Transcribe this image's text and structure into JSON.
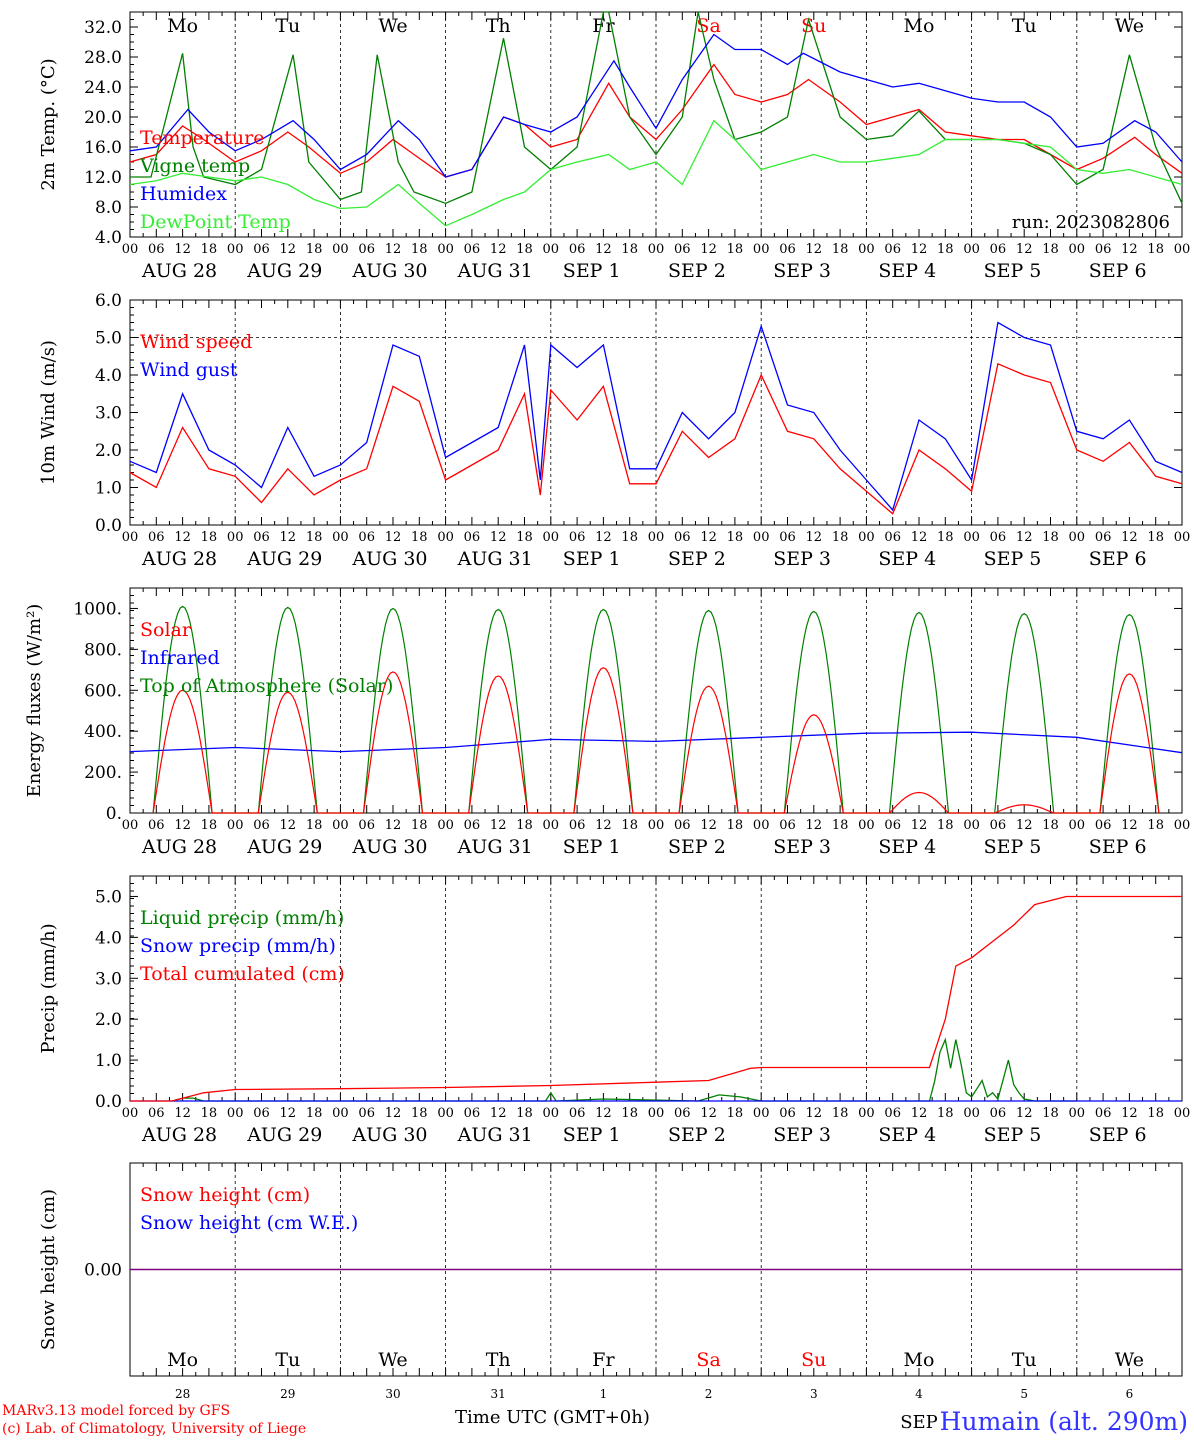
{
  "run_label": "run: 2023082806",
  "footer": {
    "credit_line1": "MARv3.13 model forced by GFS",
    "credit_line2": "(c) Lab. of Climatology, University of Liege",
    "station": "Humain (alt. 290m)",
    "time_axis_label": "Time UTC (GMT+0h)",
    "overlay_month": "SEP"
  },
  "hour_ticks": [
    "00",
    "06",
    "12",
    "18"
  ],
  "final_hour": "00",
  "day_letters": [
    "Mo",
    "Tu",
    "We",
    "Th",
    "Fr",
    "Sa",
    "Su",
    "Mo",
    "Tu",
    "We"
  ],
  "weekend_indices": [
    5,
    6
  ],
  "weekend_color": "#ff0000",
  "date_labels": [
    "AUG 28",
    "AUG 29",
    "AUG 30",
    "AUG 31",
    "SEP  1",
    "SEP  2",
    "SEP  3",
    "SEP  4",
    "SEP  5",
    "SEP  6"
  ],
  "bottom_day_numbers": [
    "28",
    "29",
    "30",
    "31",
    "1",
    "2",
    "3",
    "4",
    "5",
    "6"
  ],
  "chart_data": [
    {
      "type": "line",
      "ylabel": "2m Temp. (°C)",
      "ylim": [
        4,
        34
      ],
      "yticks": [
        "4.0",
        "8.0",
        "12.0",
        "16.0",
        "20.0",
        "24.0",
        "28.0",
        "32.0"
      ],
      "x_units": "days since AUG 28 00 UTC",
      "series": [
        {
          "name": "Temperature",
          "color": "#ff0000",
          "x": [
            0,
            0.25,
            0.5,
            0.7,
            1,
            1.25,
            1.5,
            1.7,
            2,
            2.25,
            2.5,
            2.7,
            3,
            3.25,
            3.55,
            3.75,
            4,
            4.25,
            4.55,
            4.75,
            5,
            5.25,
            5.55,
            5.75,
            6,
            6.25,
            6.45,
            6.75,
            7,
            7.25,
            7.5,
            7.75,
            8,
            8.25,
            8.5,
            8.75,
            9,
            9.25,
            9.55,
            9.75,
            10
          ],
          "y": [
            14,
            15,
            18.8,
            17,
            14,
            15.5,
            18,
            16,
            12.5,
            14,
            17,
            15,
            12,
            13,
            20,
            19,
            16,
            17,
            24.5,
            20,
            17,
            21,
            27,
            23,
            22,
            23,
            25,
            22,
            19,
            20,
            21,
            18,
            17.5,
            17,
            17,
            15,
            13,
            14.5,
            17.3,
            15,
            12.5
          ]
        },
        {
          "name": "Vigne temp",
          "color": "#008000",
          "x": [
            0,
            0.2,
            0.5,
            0.6,
            0.7,
            1,
            1.25,
            1.55,
            1.7,
            2,
            2.2,
            2.35,
            2.55,
            2.7,
            3,
            3.25,
            3.55,
            3.75,
            4,
            4.25,
            4.5,
            4.55,
            4.75,
            5,
            5.25,
            5.4,
            5.55,
            5.75,
            6,
            6.25,
            6.45,
            6.75,
            7,
            7.25,
            7.5,
            7.75,
            8,
            8.25,
            8.5,
            8.75,
            9,
            9.25,
            9.5,
            9.75,
            10
          ],
          "y": [
            12,
            12,
            28.5,
            16,
            12,
            11,
            13,
            28.3,
            14,
            9,
            10,
            28.3,
            14,
            10,
            8.5,
            10,
            30.5,
            16,
            13,
            16,
            34,
            34,
            20,
            15,
            20,
            34,
            25,
            17,
            18,
            20,
            33,
            20,
            17,
            17.5,
            20.8,
            17,
            17,
            17,
            16.5,
            15,
            11,
            13,
            28.3,
            16,
            8.5
          ]
        },
        {
          "name": "Humidex",
          "color": "#0000ff",
          "x": [
            0,
            0.25,
            0.55,
            0.75,
            1,
            1.25,
            1.55,
            1.75,
            2,
            2.25,
            2.55,
            2.75,
            3,
            3.25,
            3.55,
            3.75,
            4,
            4.25,
            4.6,
            4.75,
            5,
            5.25,
            5.55,
            5.75,
            6,
            6.25,
            6.4,
            6.75,
            7,
            7.25,
            7.5,
            7.75,
            8,
            8.25,
            8.5,
            8.75,
            9,
            9.25,
            9.55,
            9.75,
            10
          ],
          "y": [
            15.5,
            16,
            21,
            18,
            15.5,
            17,
            19.5,
            17,
            13,
            15,
            19.5,
            17,
            12,
            13,
            20,
            19,
            18,
            20,
            27.5,
            24,
            18.5,
            25,
            31,
            29,
            29,
            27,
            28.5,
            26,
            25,
            24,
            24.5,
            23.5,
            22.5,
            22,
            22,
            20,
            16,
            16.5,
            19.5,
            18,
            14
          ]
        },
        {
          "name": "DewPoint Temp",
          "color": "#33ee33",
          "x": [
            0,
            0.25,
            0.5,
            0.75,
            1,
            1.25,
            1.5,
            1.75,
            2,
            2.25,
            2.55,
            2.75,
            3,
            3.25,
            3.55,
            3.75,
            4,
            4.25,
            4.55,
            4.75,
            5,
            5.25,
            5.55,
            5.75,
            6,
            6.25,
            6.5,
            6.75,
            7,
            7.25,
            7.5,
            7.75,
            8,
            8.25,
            8.5,
            8.75,
            9,
            9.25,
            9.5,
            9.75,
            10
          ],
          "y": [
            11,
            11.5,
            12.5,
            12,
            11.5,
            12,
            11,
            9,
            7.8,
            8,
            11,
            8.5,
            5.5,
            7,
            9,
            10,
            13,
            14,
            15,
            13,
            14,
            11,
            19.5,
            17,
            13,
            14,
            15,
            14,
            14,
            14.5,
            15,
            17,
            17,
            17,
            16.5,
            16,
            13,
            12.5,
            13,
            12,
            11
          ]
        }
      ]
    },
    {
      "type": "line",
      "ylabel": "10m Wind (m/s)",
      "ylim": [
        0,
        6
      ],
      "yticks": [
        "0.0",
        "1.0",
        "2.0",
        "3.0",
        "4.0",
        "5.0",
        "6.0"
      ],
      "reference_line": 5,
      "x_units": "days since AUG 28 00 UTC",
      "series": [
        {
          "name": "Wind speed",
          "color": "#ff0000",
          "x": [
            0,
            0.25,
            0.5,
            0.75,
            1,
            1.25,
            1.5,
            1.75,
            2,
            2.25,
            2.5,
            2.75,
            3,
            3.25,
            3.5,
            3.75,
            3.9,
            4,
            4.25,
            4.5,
            4.75,
            5,
            5.25,
            5.5,
            5.75,
            6,
            6.25,
            6.5,
            6.75,
            7,
            7.25,
            7.5,
            7.75,
            8,
            8.25,
            8.5,
            8.75,
            9,
            9.25,
            9.5,
            9.75,
            10
          ],
          "y": [
            1.4,
            1,
            2.6,
            1.5,
            1.3,
            0.6,
            1.5,
            0.8,
            1.2,
            1.5,
            3.7,
            3.3,
            1.2,
            1.6,
            2,
            3.5,
            0.8,
            3.6,
            2.8,
            3.7,
            1.1,
            1.1,
            2.5,
            1.8,
            2.3,
            4,
            2.5,
            2.3,
            1.5,
            0.9,
            0.3,
            2,
            1.5,
            0.9,
            4.3,
            4,
            3.8,
            2,
            1.7,
            2.2,
            1.3,
            1.1
          ]
        },
        {
          "name": "Wind gust",
          "color": "#0000ff",
          "x": [
            0,
            0.25,
            0.5,
            0.75,
            1,
            1.25,
            1.5,
            1.75,
            2,
            2.25,
            2.5,
            2.75,
            3,
            3.25,
            3.5,
            3.75,
            3.9,
            4,
            4.25,
            4.5,
            4.75,
            5,
            5.25,
            5.5,
            5.75,
            6,
            6.25,
            6.5,
            6.75,
            7,
            7.25,
            7.5,
            7.75,
            8,
            8.25,
            8.5,
            8.75,
            9,
            9.25,
            9.5,
            9.75,
            10
          ],
          "y": [
            1.7,
            1.4,
            3.5,
            2,
            1.6,
            1,
            2.6,
            1.3,
            1.6,
            2.2,
            4.8,
            4.5,
            1.8,
            2.2,
            2.6,
            4.8,
            1.2,
            4.8,
            4.2,
            4.8,
            1.5,
            1.5,
            3,
            2.3,
            3,
            5.3,
            3.2,
            3,
            2,
            1.2,
            0.4,
            2.8,
            2.3,
            1.2,
            5.4,
            5,
            4.8,
            2.5,
            2.3,
            2.8,
            1.7,
            1.4
          ]
        }
      ]
    },
    {
      "type": "line",
      "ylabel": "Energy fluxes (W/m²)",
      "ylim": [
        0,
        1100
      ],
      "yticks": [
        "0.",
        "200.",
        "400.",
        "600.",
        "800.",
        "1000."
      ],
      "x_units": "days since AUG 28 00 UTC",
      "series": [
        {
          "name": "Solar",
          "color": "#ff0000",
          "daily_peaks": [
            600,
            590,
            690,
            670,
            710,
            620,
            480,
            100,
            40,
            680
          ]
        },
        {
          "name": "Infrared",
          "color": "#0000ff",
          "x": [
            0,
            1,
            2,
            3,
            4,
            5,
            6,
            7,
            8,
            9,
            10
          ],
          "y": [
            300,
            320,
            300,
            320,
            360,
            350,
            370,
            390,
            395,
            370,
            295
          ]
        },
        {
          "name": "Top of Atmosphere (Solar)",
          "color": "#008000",
          "daily_peaks": [
            1010,
            1005,
            1000,
            995,
            995,
            990,
            985,
            980,
            975,
            970
          ]
        }
      ]
    },
    {
      "type": "line",
      "ylabel": "Precip (mm/h)",
      "ylim": [
        0,
        5.5
      ],
      "yticks": [
        "0.0",
        "1.0",
        "2.0",
        "3.0",
        "4.0",
        "5.0"
      ],
      "x_units": "days since AUG 28 00 UTC",
      "series": [
        {
          "name": "Liquid precip (mm/h)",
          "color": "#008000",
          "x": [
            0.4,
            0.5,
            0.6,
            0.7,
            3.95,
            4,
            4.05,
            4.5,
            5.4,
            5.6,
            5.8,
            6,
            7.6,
            7.65,
            7.7,
            7.75,
            7.8,
            7.85,
            7.9,
            7.95,
            8,
            8.05,
            8.1,
            8.15,
            8.2,
            8.25,
            8.35,
            8.4,
            8.45,
            8.5,
            8.6,
            9.0
          ],
          "y": [
            0,
            0.07,
            0.07,
            0,
            0,
            0.2,
            0,
            0.05,
            0,
            0.15,
            0.1,
            0,
            0,
            0.5,
            1.2,
            1.5,
            0.8,
            1.5,
            0.9,
            0.2,
            0.1,
            0.3,
            0.5,
            0.1,
            0.2,
            0.05,
            1,
            0.4,
            0.2,
            0.05,
            0,
            0
          ]
        },
        {
          "name": "Snow precip (mm/h)",
          "color": "#0000ff",
          "x": [
            0,
            10
          ],
          "y": [
            0,
            0
          ]
        },
        {
          "name": "Total cumulated (cm)",
          "color": "#ff0000",
          "x": [
            0,
            0.4,
            0.7,
            1,
            2,
            3,
            4,
            5,
            5.5,
            5.9,
            6,
            6,
            7,
            7.6,
            7.75,
            7.85,
            8,
            8.2,
            8.4,
            8.6,
            8.9,
            10
          ],
          "y": [
            0,
            0,
            0.2,
            0.28,
            0.3,
            0.33,
            0.38,
            0.46,
            0.5,
            0.8,
            0.82,
            0.82,
            0.82,
            0.82,
            2,
            3.3,
            3.5,
            3.9,
            4.3,
            4.8,
            5,
            5
          ]
        }
      ]
    },
    {
      "type": "line",
      "ylabel": "Snow height (cm)",
      "ylim": [
        -1,
        1
      ],
      "yticks": [
        "0.00"
      ],
      "x_units": "days since AUG 28 00 UTC",
      "series": [
        {
          "name": "Snow height (cm)",
          "color": "#ff0000",
          "x": [
            0,
            10
          ],
          "y": [
            0,
            0
          ]
        },
        {
          "name": "Snow height (cm W.E.)",
          "color": "#0000ff",
          "x": [
            0,
            10
          ],
          "y": [
            0,
            0
          ]
        }
      ]
    }
  ]
}
